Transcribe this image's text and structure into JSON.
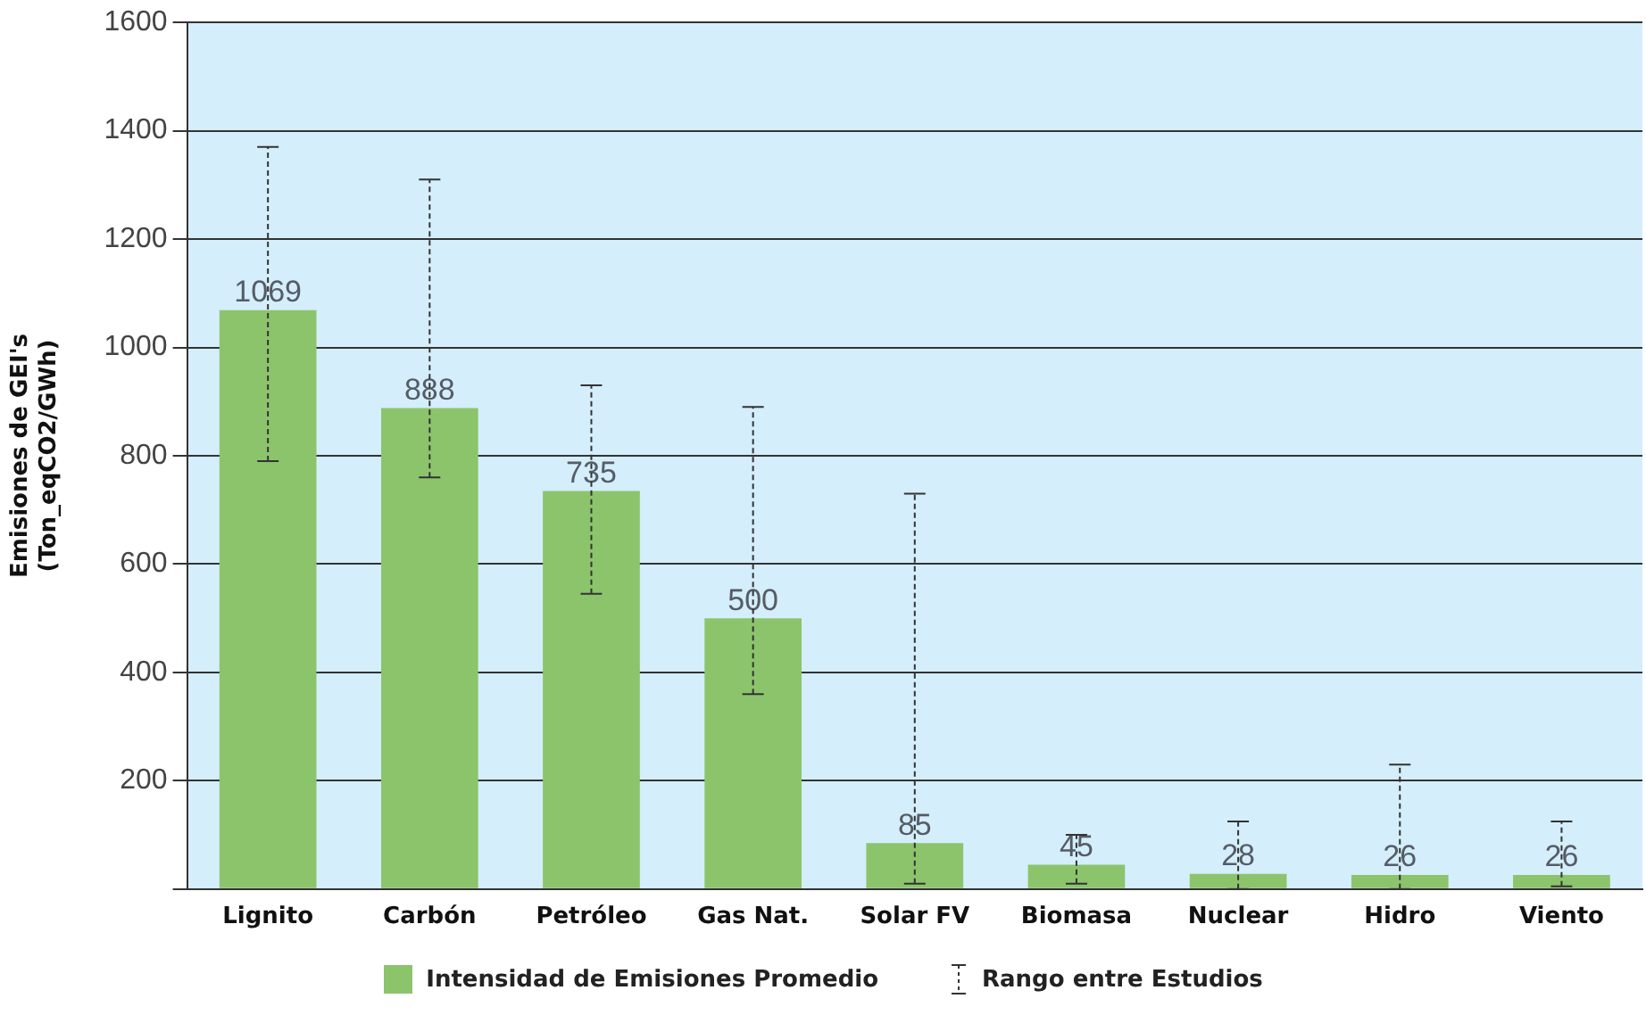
{
  "chart_data": {
    "type": "bar",
    "ylabel": "Emisiones de GEI's\n(Ton_eqCO2/GWh)",
    "categories": [
      "Lignito",
      "Carbón",
      "Petróleo",
      "Gas Nat.",
      "Solar FV",
      "Biomasa",
      "Nuclear",
      "Hidro",
      "Viento"
    ],
    "series": [
      {
        "name": "Intensidad de Emisiones Promedio",
        "color": "#8cc46c",
        "values": [
          1069,
          888,
          735,
          500,
          85,
          45,
          28,
          26,
          26
        ],
        "errors": [
          [
            790,
            1370
          ],
          [
            760,
            1310
          ],
          [
            545,
            930
          ],
          [
            360,
            890
          ],
          [
            10,
            730
          ],
          [
            10,
            100
          ],
          [
            0,
            125
          ],
          [
            0,
            230
          ],
          [
            5,
            125
          ]
        ]
      }
    ],
    "ylim": [
      0,
      1600
    ],
    "yticks": [
      {
        "value": 0,
        "label": null
      },
      200,
      400,
      600,
      800,
      1000,
      1200,
      1400,
      1600
    ],
    "grid": "y",
    "legend": "bottom",
    "data_labels": true,
    "annotations": [
      "Rango entre Estudios"
    ]
  }
}
